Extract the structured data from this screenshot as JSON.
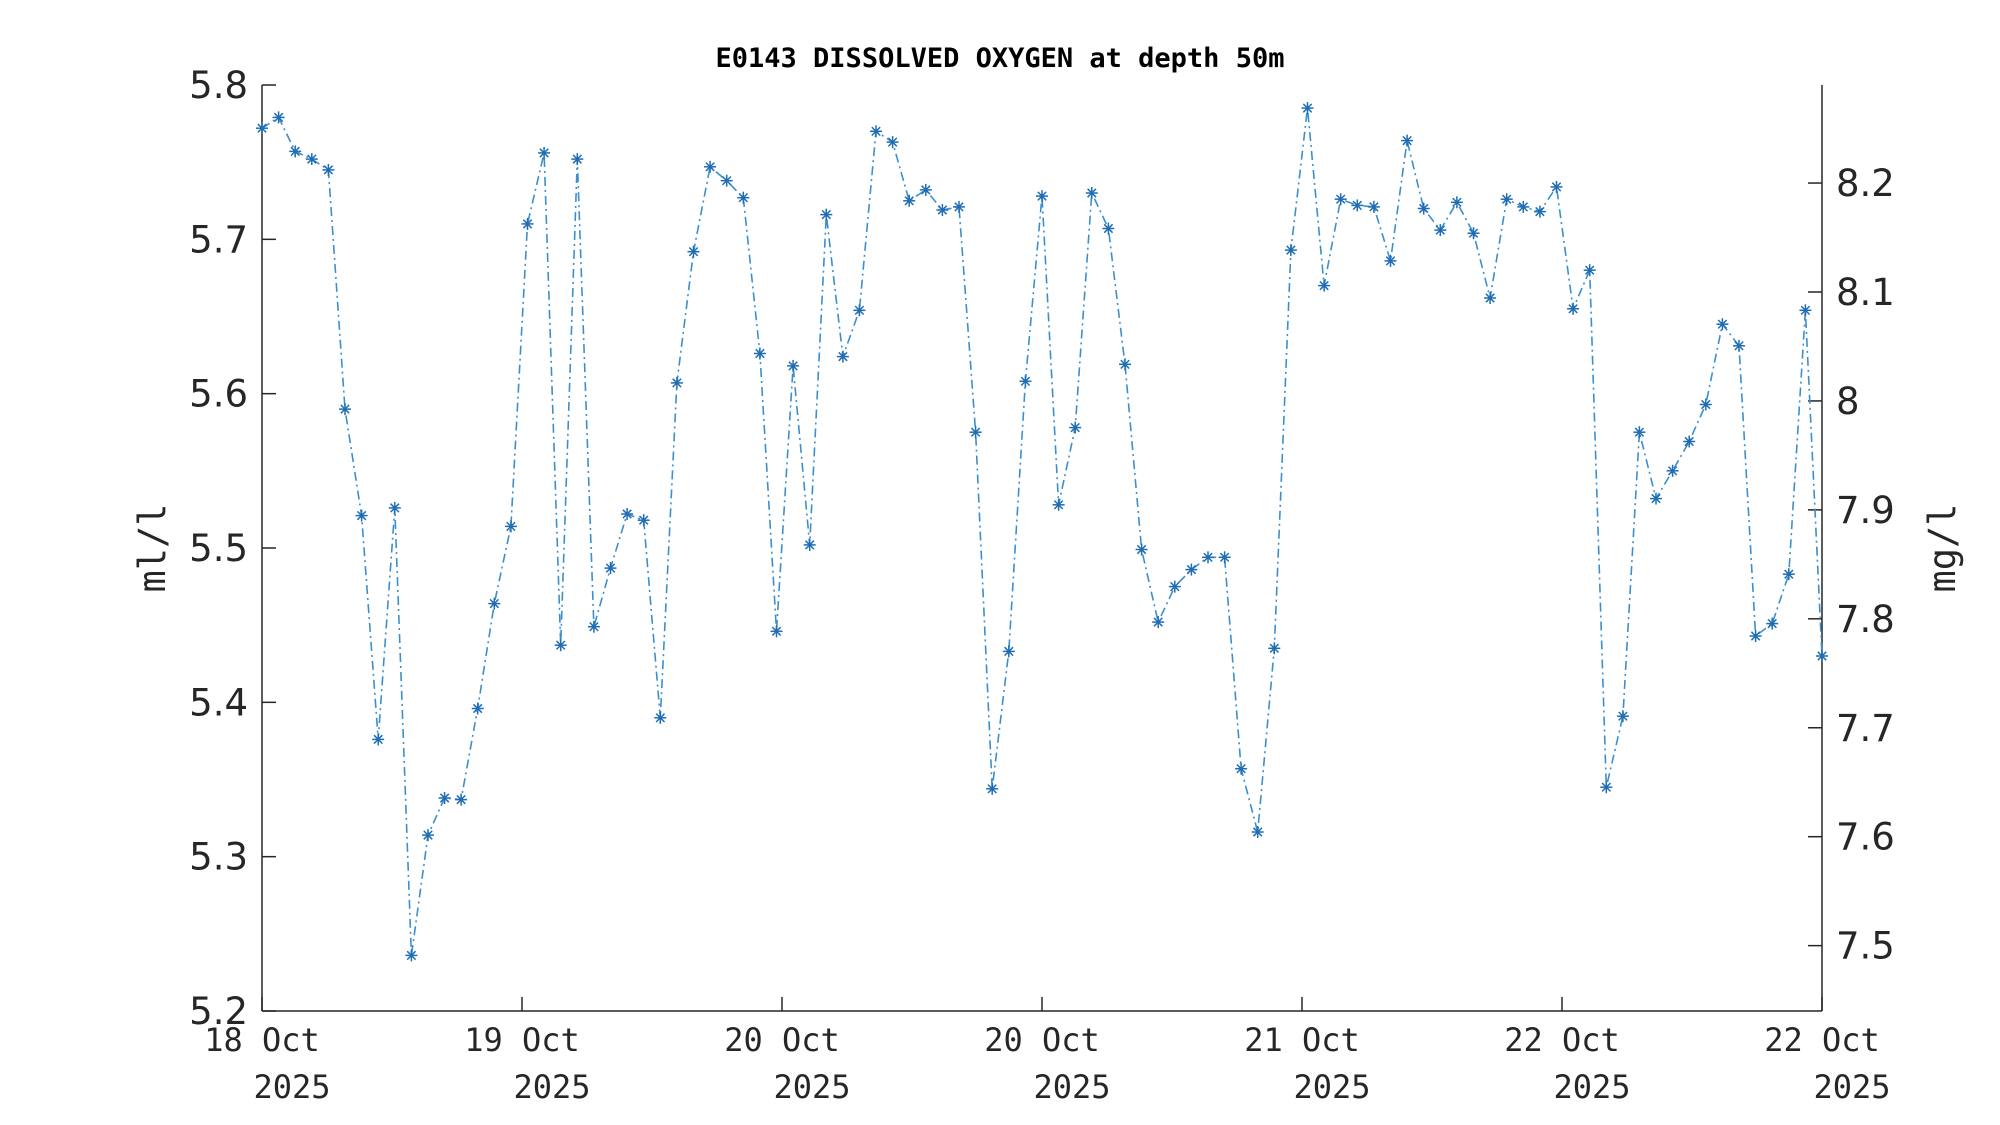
{
  "chart_data": {
    "type": "line",
    "title": "E0143 DISSOLVED OXYGEN at depth 50m",
    "ylabel": "ml/l",
    "ylabel_right": "mg/l",
    "ylim": [
      5.2,
      5.8
    ],
    "ylim_right": [
      7.44,
      8.29
    ],
    "yticks": [
      "5.2",
      "5.3",
      "5.4",
      "5.5",
      "5.6",
      "5.7",
      "5.8"
    ],
    "yticks_right": [
      "7.5",
      "7.6",
      "7.7",
      "7.8",
      "7.9",
      "8",
      "8.1",
      "8.2"
    ],
    "xticks": [
      {
        "day": "18 Oct",
        "year": "2025"
      },
      {
        "day": "19 Oct",
        "year": "2025"
      },
      {
        "day": "20 Oct",
        "year": "2025"
      },
      {
        "day": "20 Oct",
        "year": "2025"
      },
      {
        "day": "21 Oct",
        "year": "2025"
      },
      {
        "day": "22 Oct",
        "year": "2025"
      },
      {
        "day": "22 Oct",
        "year": "2025"
      }
    ],
    "line_color": "#3b8fcf",
    "marker_color": "#1f6db3",
    "line_style": "dash-dot",
    "marker": "asterisk",
    "grid": false,
    "series": [
      {
        "values": [
          5.772,
          5.779,
          5.757,
          5.752,
          5.745,
          5.59,
          5.521,
          5.376,
          5.526,
          5.236,
          5.314,
          5.338,
          5.337,
          5.396,
          5.464,
          5.514,
          5.71,
          5.756,
          5.437,
          5.752,
          5.449,
          5.487,
          5.522,
          5.518,
          5.39,
          5.607,
          5.692,
          5.747,
          5.738,
          5.727,
          5.626,
          5.446,
          5.618,
          5.502,
          5.716,
          5.624,
          5.654,
          5.77,
          5.763,
          5.725,
          5.732,
          5.719,
          5.721,
          5.575,
          5.344,
          5.433,
          5.608,
          5.728,
          5.528,
          5.578,
          5.73,
          5.707,
          5.619,
          5.499,
          5.452,
          5.475,
          5.486,
          5.494,
          5.494,
          5.357,
          5.316,
          5.435,
          5.693,
          5.785,
          5.67,
          5.726,
          5.722,
          5.721,
          5.686,
          5.764,
          5.72,
          5.706,
          5.724,
          5.704,
          5.662,
          5.726,
          5.721,
          5.718,
          5.734,
          5.655,
          5.68,
          5.345,
          5.391,
          5.575,
          5.532,
          5.55,
          5.569,
          5.593,
          5.645,
          5.631,
          5.443,
          5.451,
          5.483,
          5.654,
          5.43
        ]
      }
    ]
  }
}
